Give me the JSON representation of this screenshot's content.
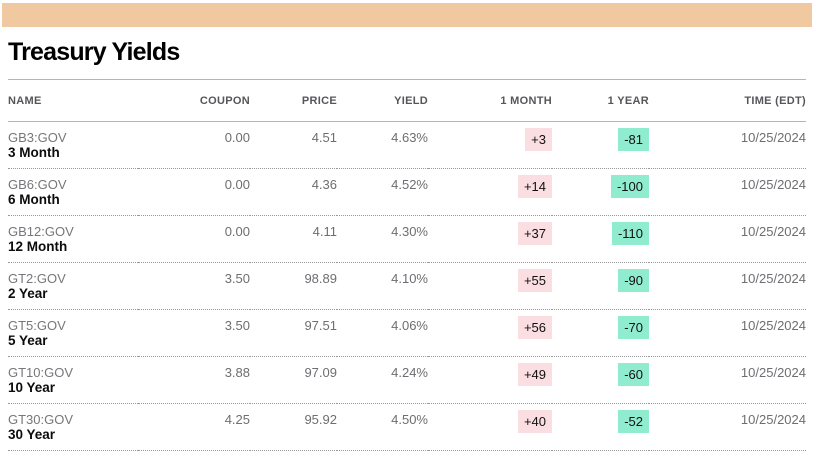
{
  "page": {
    "title": "Treasury Yields"
  },
  "colors": {
    "accent": "#e0872e",
    "positive-bg": "#fbdee1",
    "negative-bg": "#90ecce",
    "muted-text": "#6d6e71"
  },
  "table": {
    "columns": [
      "NAME",
      "COUPON",
      "PRICE",
      "YIELD",
      "1 MONTH",
      "1 YEAR",
      "TIME (EDT)"
    ],
    "rows": [
      {
        "ticker": "GB3:GOV",
        "name": "3 Month",
        "coupon": "0.00",
        "price": "4.51",
        "yield": "4.63%",
        "one_month": "+3",
        "one_year": "-81",
        "time": "10/25/2024"
      },
      {
        "ticker": "GB6:GOV",
        "name": "6 Month",
        "coupon": "0.00",
        "price": "4.36",
        "yield": "4.52%",
        "one_month": "+14",
        "one_year": "-100",
        "time": "10/25/2024"
      },
      {
        "ticker": "GB12:GOV",
        "name": "12 Month",
        "coupon": "0.00",
        "price": "4.11",
        "yield": "4.30%",
        "one_month": "+37",
        "one_year": "-110",
        "time": "10/25/2024"
      },
      {
        "ticker": "GT2:GOV",
        "name": "2 Year",
        "coupon": "3.50",
        "price": "98.89",
        "yield": "4.10%",
        "one_month": "+55",
        "one_year": "-90",
        "time": "10/25/2024"
      },
      {
        "ticker": "GT5:GOV",
        "name": "5 Year",
        "coupon": "3.50",
        "price": "97.51",
        "yield": "4.06%",
        "one_month": "+56",
        "one_year": "-70",
        "time": "10/25/2024"
      },
      {
        "ticker": "GT10:GOV",
        "name": "10 Year",
        "coupon": "3.88",
        "price": "97.09",
        "yield": "4.24%",
        "one_month": "+49",
        "one_year": "-60",
        "time": "10/25/2024"
      },
      {
        "ticker": "GT30:GOV",
        "name": "30 Year",
        "coupon": "4.25",
        "price": "95.92",
        "yield": "4.50%",
        "one_month": "+40",
        "one_year": "-52",
        "time": "10/25/2024"
      }
    ]
  }
}
